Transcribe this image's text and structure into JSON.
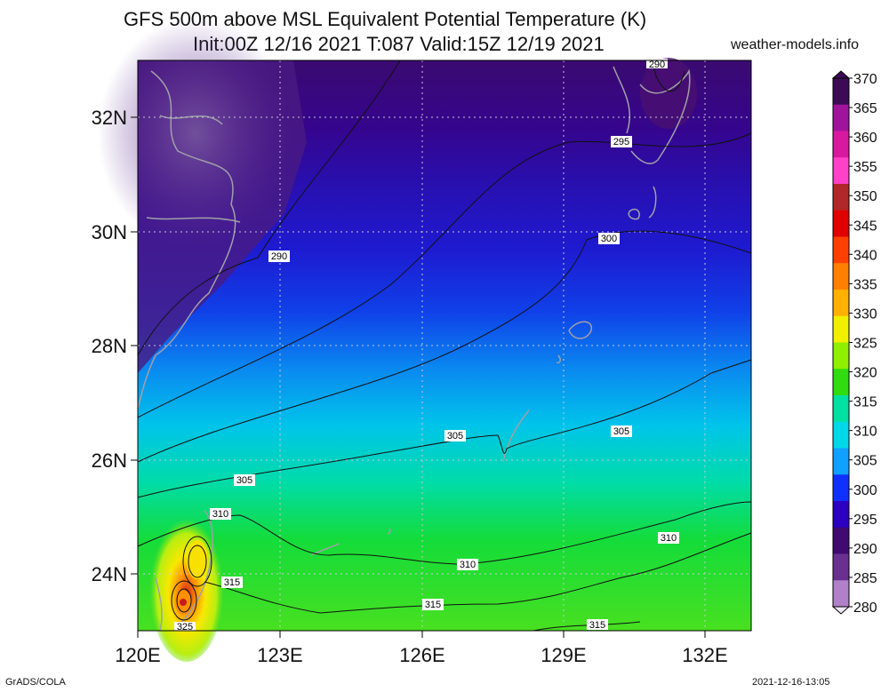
{
  "title": {
    "line1": "GFS 500m above MSL Equivalent Potential Temperature (K)",
    "line2": "Init:00Z 12/16 2021 T:087 Valid:15Z 12/19 2021",
    "site": "weather-models.info"
  },
  "axes": {
    "lat_labels": [
      "32N",
      "30N",
      "28N",
      "26N",
      "24N"
    ],
    "lon_labels": [
      "120E",
      "123E",
      "126E",
      "129E",
      "132E"
    ]
  },
  "contour_labels": [
    "290",
    "290",
    "295",
    "300",
    "305",
    "305",
    "305",
    "310",
    "310",
    "310",
    "315",
    "315",
    "315",
    "325"
  ],
  "colorbar": {
    "labels": [
      "370",
      "365",
      "360",
      "355",
      "350",
      "345",
      "340",
      "335",
      "330",
      "325",
      "320",
      "315",
      "310",
      "305",
      "300",
      "295",
      "290",
      "285",
      "280"
    ],
    "colors": [
      "#3d0a55",
      "#a0149b",
      "#d8189e",
      "#ff40c8",
      "#b02828",
      "#e00000",
      "#ff4000",
      "#ff8000",
      "#ffb000",
      "#f0f000",
      "#90ee00",
      "#30dc10",
      "#00e0a0",
      "#00d8e8",
      "#10a0ff",
      "#1030ff",
      "#2c00c0",
      "#400a70",
      "#6a3090",
      "#b080c8",
      "#f0e8f8"
    ]
  },
  "footer": {
    "left": "GrADS/COLA",
    "right": "2021-12-16-13:05"
  }
}
